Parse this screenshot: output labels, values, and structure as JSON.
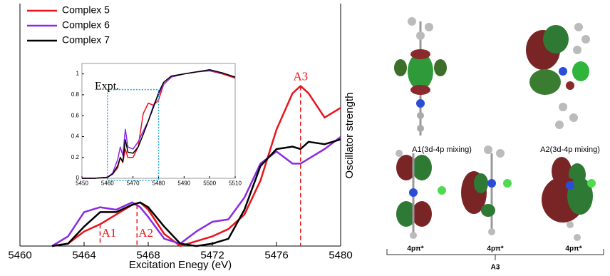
{
  "chart_data": [
    {
      "type": "line",
      "xlabel": "Excitation Enegy (eV)",
      "ylabel": "Oscillator strength",
      "xlim": [
        5460,
        5480
      ],
      "ylim": [
        0,
        1
      ],
      "xticks": [
        5460,
        5464,
        5468,
        5472,
        5476,
        5480
      ],
      "legend": "upper left",
      "x": [
        5462,
        5463,
        5464,
        5465,
        5466,
        5467,
        5467.5,
        5468,
        5469,
        5470,
        5471,
        5472,
        5473,
        5474,
        5475,
        5476,
        5477,
        5477.5,
        5478,
        5479,
        5480
      ],
      "series": [
        {
          "name": "Complex 5",
          "color": "#e8141c",
          "values": [
            0,
            0.01,
            0.06,
            0.09,
            0.13,
            0.17,
            0.18,
            0.15,
            0.05,
            0,
            0.02,
            0.04,
            0.07,
            0.13,
            0.27,
            0.48,
            0.63,
            0.66,
            0.63,
            0.53,
            0.57
          ]
        },
        {
          "name": "Complex 6",
          "color": "#8a2be2",
          "values": [
            0,
            0.04,
            0.14,
            0.16,
            0.15,
            0.18,
            0.16,
            0.12,
            0.03,
            0.01,
            0.06,
            0.1,
            0.11,
            0.2,
            0.34,
            0.39,
            0.34,
            0.34,
            0.36,
            0.4,
            0.45
          ]
        },
        {
          "name": "Complex 7",
          "color": "#000000",
          "values": [
            0,
            0.01,
            0.08,
            0.14,
            0.14,
            0.17,
            0.18,
            0.16,
            0.08,
            0.01,
            0,
            0.01,
            0.03,
            0.15,
            0.33,
            0.4,
            0.41,
            0.4,
            0.43,
            0.42,
            0.44
          ]
        }
      ],
      "annotations": [
        {
          "text": "A1",
          "x": 5465,
          "y": 0.09
        },
        {
          "text": "A2",
          "x": 5467.3,
          "y": 0.17
        },
        {
          "text": "A3",
          "x": 5477.5,
          "y": 0.66
        }
      ]
    },
    {
      "type": "line",
      "title": "Expt.",
      "xlim": [
        5450,
        5510
      ],
      "ylim": [
        0,
        1.1
      ],
      "xticks": [
        5450,
        5460,
        5470,
        5480,
        5490,
        5500,
        5510
      ],
      "yticks": [
        0,
        0.2,
        0.4,
        0.6,
        0.8,
        1
      ],
      "x": [
        5450,
        5455,
        5460,
        5462,
        5464,
        5465,
        5466,
        5467,
        5468,
        5470,
        5472,
        5474,
        5476,
        5478,
        5480,
        5482,
        5485,
        5490,
        5495,
        5500,
        5505,
        5510
      ],
      "series": [
        {
          "color": "#e8141c",
          "values": [
            0,
            0,
            0.01,
            0.04,
            0.1,
            0.2,
            0.15,
            0.28,
            0.2,
            0.2,
            0.3,
            0.62,
            0.72,
            0.7,
            0.75,
            0.9,
            0.97,
            1,
            1.02,
            1.03,
            1,
            0.96
          ]
        },
        {
          "color": "#8a2be2",
          "values": [
            0,
            0,
            0.01,
            0.05,
            0.18,
            0.3,
            0.22,
            0.47,
            0.3,
            0.28,
            0.35,
            0.45,
            0.55,
            0.7,
            0.8,
            0.9,
            0.97,
            1,
            1.02,
            1.03,
            1.01,
            0.97
          ]
        },
        {
          "color": "#000000",
          "values": [
            0,
            0,
            0.01,
            0.04,
            0.12,
            0.2,
            0.16,
            0.37,
            0.25,
            0.24,
            0.3,
            0.42,
            0.55,
            0.68,
            0.82,
            0.92,
            0.98,
            1,
            1.02,
            1.04,
            1.01,
            0.97
          ]
        }
      ]
    }
  ],
  "orbital_panel": {
    "labels": [
      "A1(3d-4p mixing)",
      "A2(3d-4p mixing)",
      "4pπ*",
      "4pπ*",
      "4pπ*"
    ],
    "group_label": "A3"
  }
}
